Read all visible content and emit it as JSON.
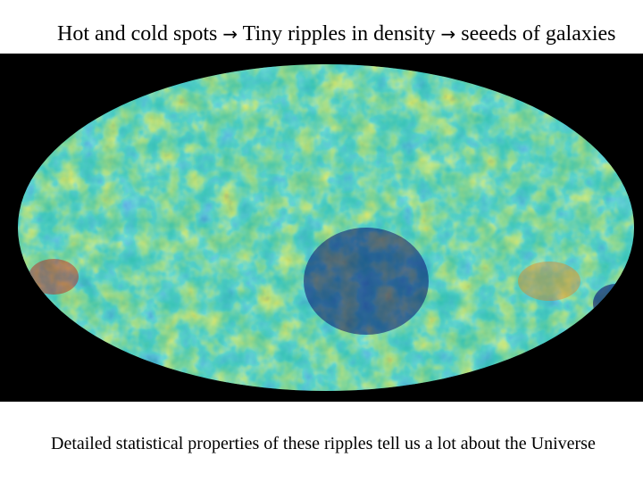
{
  "header": {
    "part1": "Hot and cold spots",
    "part2": "Tiny ripples in density",
    "part3": "seeeds of galaxies",
    "arrow_glyph": "→"
  },
  "caption": "Detailed statistical properties of these ripples tell us a lot about the Universe",
  "map": {
    "colors": {
      "background": "#000000",
      "base": "#2fbfb0",
      "deep_cold": "#0a0f6e",
      "cold": "#1f3fc8",
      "cool": "#2a86d8",
      "warm": "#b8e03a",
      "hot": "#f2d31a",
      "hotter": "#f07a14",
      "hottest": "#c8140e"
    }
  }
}
